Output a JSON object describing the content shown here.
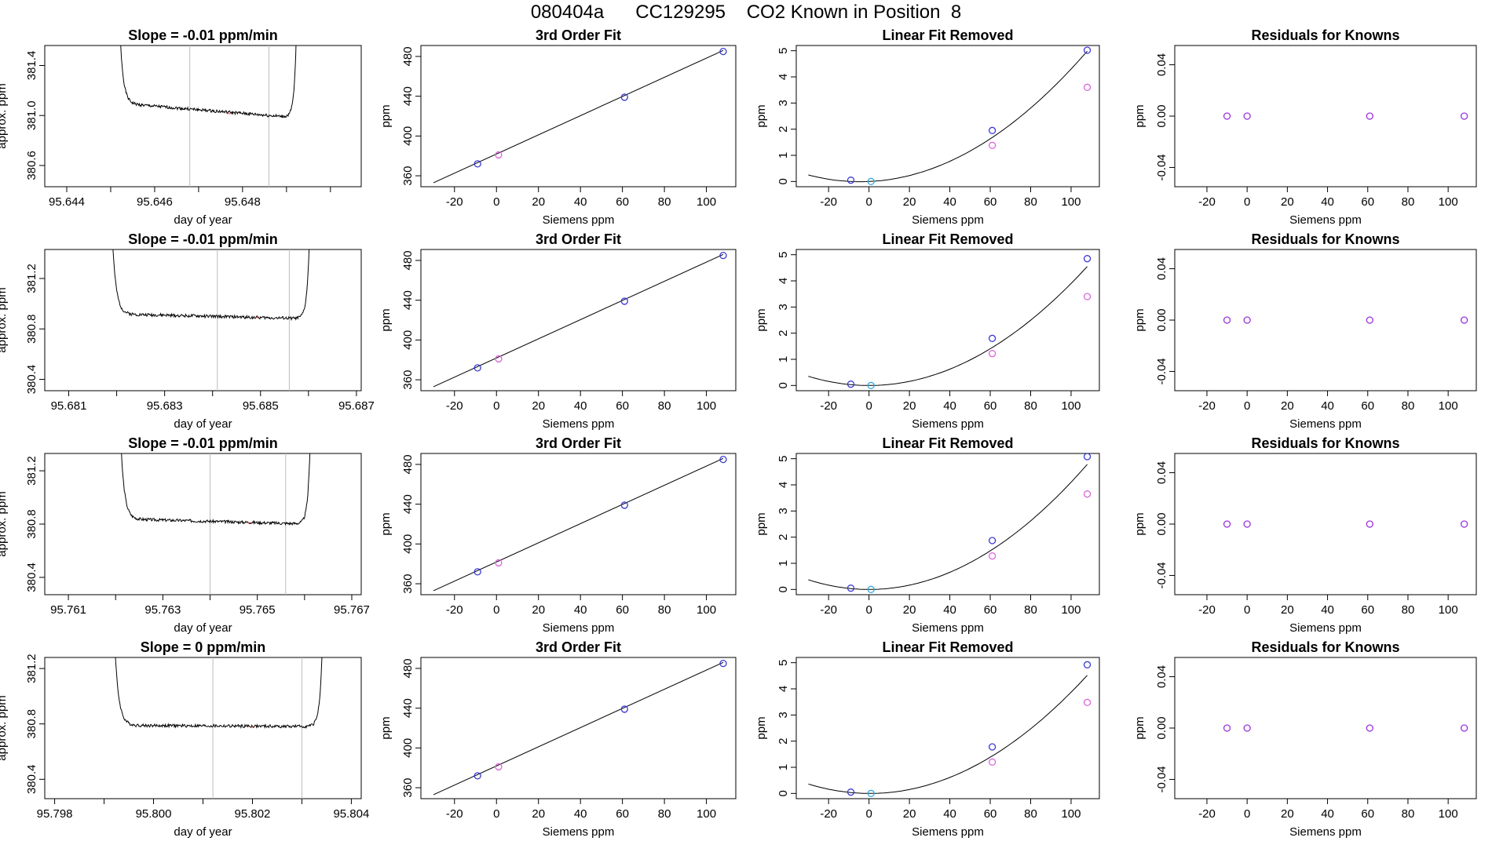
{
  "page": {
    "title": "080404a      CC129295    CO2 Known in Position  8"
  },
  "colors": {
    "axis": "#000000",
    "vline": "#bdbdbd",
    "blue": "#3a3ad4",
    "magenta": "#dd66dd",
    "cyan": "#33aadd",
    "purple": "#9933dd",
    "redmark": "#ee3333"
  },
  "chart_data": [
    {
      "type": "line",
      "row": 0,
      "col": 0,
      "title": "Slope =  -0.01  ppm/min",
      "xlabel": "day of year",
      "ylabel": "approx. ppm",
      "xlim": [
        95.6435,
        95.6507
      ],
      "ylim": [
        380.43,
        381.56
      ],
      "xticks": [
        95.644,
        95.646,
        95.648
      ],
      "xtick_labels": [
        "95.644",
        "95.646",
        "95.648"
      ],
      "xminor": [
        95.645,
        95.647,
        95.649,
        95.65
      ],
      "yticks": [
        380.6,
        381.0,
        381.4
      ],
      "ytick_labels": [
        "380.6",
        "381.0",
        "381.4"
      ],
      "vlines": [
        95.6468,
        95.6486
      ],
      "series": {
        "t0": 95.6451,
        "t1": 95.6493,
        "base": 381.015,
        "start": 381.1,
        "end": 380.98,
        "amp": 0.012,
        "seed": 1
      }
    },
    {
      "type": "line",
      "row": 1,
      "col": 0,
      "title": "Slope =  -0.01  ppm/min",
      "xlabel": "day of year",
      "ylabel": "approx. ppm",
      "xlim": [
        95.6805,
        95.6871
      ],
      "ylim": [
        380.31,
        381.43
      ],
      "xticks": [
        95.681,
        95.683,
        95.685,
        95.687
      ],
      "xtick_labels": [
        "95.681",
        "95.683",
        "95.685",
        "95.687"
      ],
      "xminor": [
        95.682,
        95.684,
        95.686
      ],
      "yticks": [
        380.4,
        380.8,
        381.2
      ],
      "ytick_labels": [
        "380.4",
        "380.8",
        "381.2"
      ],
      "vlines": [
        95.6841,
        95.6856
      ],
      "series": {
        "t0": 95.6818,
        "t1": 95.6861,
        "base": 380.89,
        "start": 380.92,
        "end": 380.88,
        "amp": 0.012,
        "seed": 2
      }
    },
    {
      "type": "line",
      "row": 2,
      "col": 0,
      "title": "Slope =  -0.01  ppm/min",
      "xlabel": "day of year",
      "ylabel": "approx. ppm",
      "xlim": [
        95.7605,
        95.7672
      ],
      "ylim": [
        380.27,
        381.33
      ],
      "xticks": [
        95.761,
        95.763,
        95.765,
        95.767
      ],
      "xtick_labels": [
        "95.761",
        "95.763",
        "95.765",
        "95.767"
      ],
      "xminor": [
        95.762,
        95.764,
        95.766
      ],
      "yticks": [
        380.4,
        380.8,
        381.2
      ],
      "ytick_labels": [
        "380.4",
        "380.8",
        "381.2"
      ],
      "vlines": [
        95.764,
        95.7656
      ],
      "series": {
        "t0": 95.762,
        "t1": 95.7662,
        "base": 380.81,
        "start": 380.84,
        "end": 380.8,
        "amp": 0.011,
        "seed": 3
      }
    },
    {
      "type": "line",
      "row": 3,
      "col": 0,
      "title": "Slope =  0  ppm/min",
      "xlabel": "day of year",
      "ylabel": "approx. ppm",
      "xlim": [
        95.7978,
        95.8042
      ],
      "ylim": [
        380.26,
        381.28
      ],
      "xticks": [
        95.798,
        95.8,
        95.802,
        95.804
      ],
      "xtick_labels": [
        "95.798",
        "95.800",
        "95.802",
        "95.804"
      ],
      "xminor": [
        95.799,
        95.801,
        95.803
      ],
      "yticks": [
        380.4,
        380.8,
        381.2
      ],
      "ytick_labels": [
        "380.4",
        "380.8",
        "381.2"
      ],
      "vlines": [
        95.8012,
        95.803
      ],
      "series": {
        "t0": 95.7991,
        "t1": 95.8035,
        "base": 380.78,
        "start": 380.79,
        "end": 380.78,
        "amp": 0.011,
        "seed": 4
      }
    },
    {
      "type": "line",
      "row": 0,
      "col": 1,
      "title": "3rd Order Fit",
      "xlabel": "Siemens ppm",
      "ylabel": "ppm",
      "xlim": [
        -36,
        114
      ],
      "ylim": [
        349,
        491
      ],
      "xticks": [
        -20,
        0,
        20,
        40,
        60,
        80,
        100
      ],
      "yticks": [
        360,
        400,
        440,
        480
      ],
      "fit": {
        "x0": -30,
        "y0": 353,
        "x1": 108,
        "y1": 486
      },
      "points": [
        {
          "x": -9,
          "y": 372,
          "c": "blue"
        },
        {
          "x": 1,
          "y": 381,
          "c": "magenta"
        },
        {
          "x": 61,
          "y": 439,
          "c": "blue"
        },
        {
          "x": 108,
          "y": 485,
          "c": "blue"
        }
      ]
    },
    {
      "type": "line",
      "row": 1,
      "col": 1,
      "title": "3rd Order Fit",
      "xlabel": "Siemens ppm",
      "ylabel": "ppm",
      "xlim": [
        -36,
        114
      ],
      "ylim": [
        349,
        491
      ],
      "xticks": [
        -20,
        0,
        20,
        40,
        60,
        80,
        100
      ],
      "yticks": [
        360,
        400,
        440,
        480
      ],
      "fit": {
        "x0": -30,
        "y0": 353,
        "x1": 108,
        "y1": 486
      },
      "points": [
        {
          "x": -9,
          "y": 372,
          "c": "blue"
        },
        {
          "x": 1,
          "y": 381,
          "c": "magenta"
        },
        {
          "x": 61,
          "y": 439,
          "c": "blue"
        },
        {
          "x": 108,
          "y": 485,
          "c": "blue"
        }
      ]
    },
    {
      "type": "line",
      "row": 2,
      "col": 1,
      "title": "3rd Order Fit",
      "xlabel": "Siemens ppm",
      "ylabel": "ppm",
      "xlim": [
        -36,
        114
      ],
      "ylim": [
        349,
        491
      ],
      "xticks": [
        -20,
        0,
        20,
        40,
        60,
        80,
        100
      ],
      "yticks": [
        360,
        400,
        440,
        480
      ],
      "fit": {
        "x0": -30,
        "y0": 353,
        "x1": 108,
        "y1": 486
      },
      "points": [
        {
          "x": -9,
          "y": 372,
          "c": "blue"
        },
        {
          "x": 1,
          "y": 381,
          "c": "magenta"
        },
        {
          "x": 61,
          "y": 439,
          "c": "blue"
        },
        {
          "x": 108,
          "y": 485,
          "c": "blue"
        }
      ]
    },
    {
      "type": "line",
      "row": 3,
      "col": 1,
      "title": "3rd Order Fit",
      "xlabel": "Siemens ppm",
      "ylabel": "ppm",
      "xlim": [
        -36,
        114
      ],
      "ylim": [
        349,
        491
      ],
      "xticks": [
        -20,
        0,
        20,
        40,
        60,
        80,
        100
      ],
      "yticks": [
        360,
        400,
        440,
        480
      ],
      "fit": {
        "x0": -30,
        "y0": 353,
        "x1": 108,
        "y1": 486
      },
      "points": [
        {
          "x": -9,
          "y": 372,
          "c": "blue"
        },
        {
          "x": 1,
          "y": 381,
          "c": "magenta"
        },
        {
          "x": 61,
          "y": 439,
          "c": "blue"
        },
        {
          "x": 108,
          "y": 485,
          "c": "blue"
        }
      ]
    },
    {
      "type": "line",
      "row": 0,
      "col": 2,
      "title": "Linear Fit Removed",
      "xlabel": "Siemens ppm",
      "ylabel": "ppm",
      "xlim": [
        -36,
        114
      ],
      "ylim": [
        -0.2,
        5.2
      ],
      "xticks": [
        -20,
        0,
        20,
        40,
        60,
        80,
        100
      ],
      "yticks": [
        0,
        1,
        2,
        3,
        4,
        5
      ],
      "curve": {
        "a": 0.000395,
        "b": 0.0035,
        "xmin": -30,
        "xmax": 108
      },
      "points": [
        {
          "x": -9,
          "y": 0.05,
          "c": "blue"
        },
        {
          "x": 1,
          "y": 0.0,
          "c": "cyan"
        },
        {
          "x": 61,
          "y": 1.95,
          "c": "blue"
        },
        {
          "x": 108,
          "y": 5.02,
          "c": "blue"
        },
        {
          "x": 61,
          "y": 1.38,
          "c": "magenta"
        },
        {
          "x": 108,
          "y": 3.6,
          "c": "magenta"
        }
      ]
    },
    {
      "type": "line",
      "row": 1,
      "col": 2,
      "title": "Linear Fit Removed",
      "xlabel": "Siemens ppm",
      "ylabel": "ppm",
      "xlim": [
        -36,
        114
      ],
      "ylim": [
        -0.2,
        5.2
      ],
      "xticks": [
        -20,
        0,
        20,
        40,
        60,
        80,
        100
      ],
      "yticks": [
        0,
        1,
        2,
        3,
        4,
        5
      ],
      "curve": {
        "a": 0.00039,
        "b": 0.0,
        "xmin": -30,
        "xmax": 108
      },
      "points": [
        {
          "x": -9,
          "y": 0.05,
          "c": "blue"
        },
        {
          "x": 1,
          "y": 0.0,
          "c": "cyan"
        },
        {
          "x": 61,
          "y": 1.8,
          "c": "blue"
        },
        {
          "x": 108,
          "y": 4.85,
          "c": "blue"
        },
        {
          "x": 61,
          "y": 1.22,
          "c": "magenta"
        },
        {
          "x": 108,
          "y": 3.4,
          "c": "magenta"
        }
      ]
    },
    {
      "type": "line",
      "row": 2,
      "col": 2,
      "title": "Linear Fit Removed",
      "xlabel": "Siemens ppm",
      "ylabel": "ppm",
      "xlim": [
        -36,
        114
      ],
      "ylim": [
        -0.2,
        5.2
      ],
      "xticks": [
        -20,
        0,
        20,
        40,
        60,
        80,
        100
      ],
      "yticks": [
        0,
        1,
        2,
        3,
        4,
        5
      ],
      "curve": {
        "a": 0.00041,
        "b": 0.0,
        "xmin": -30,
        "xmax": 108
      },
      "points": [
        {
          "x": -9,
          "y": 0.05,
          "c": "blue"
        },
        {
          "x": 1,
          "y": 0.0,
          "c": "cyan"
        },
        {
          "x": 61,
          "y": 1.87,
          "c": "blue"
        },
        {
          "x": 108,
          "y": 5.08,
          "c": "blue"
        },
        {
          "x": 61,
          "y": 1.28,
          "c": "magenta"
        },
        {
          "x": 108,
          "y": 3.65,
          "c": "magenta"
        }
      ]
    },
    {
      "type": "line",
      "row": 3,
      "col": 2,
      "title": "Linear Fit Removed",
      "xlabel": "Siemens ppm",
      "ylabel": "ppm",
      "xlim": [
        -36,
        114
      ],
      "ylim": [
        -0.2,
        5.2
      ],
      "xticks": [
        -20,
        0,
        20,
        40,
        60,
        80,
        100
      ],
      "yticks": [
        0,
        1,
        2,
        3,
        4,
        5
      ],
      "curve": {
        "a": 0.00039,
        "b": -0.0003,
        "xmin": -30,
        "xmax": 108
      },
      "points": [
        {
          "x": -9,
          "y": 0.05,
          "c": "blue"
        },
        {
          "x": 1,
          "y": 0.0,
          "c": "cyan"
        },
        {
          "x": 61,
          "y": 1.78,
          "c": "blue"
        },
        {
          "x": 108,
          "y": 4.92,
          "c": "blue"
        },
        {
          "x": 61,
          "y": 1.2,
          "c": "magenta"
        },
        {
          "x": 108,
          "y": 3.48,
          "c": "magenta"
        }
      ]
    },
    {
      "type": "scatter",
      "row": 0,
      "col": 3,
      "title": "Residuals for Knowns",
      "xlabel": "Siemens ppm",
      "ylabel": "ppm",
      "xlim": [
        -36,
        114
      ],
      "ylim": [
        -0.055,
        0.055
      ],
      "xticks": [
        -20,
        0,
        20,
        40,
        60,
        80,
        100
      ],
      "yticks": [
        -0.04,
        0.0,
        0.04
      ],
      "ytick_labels": [
        "-0.04",
        "0.00",
        "0.04"
      ],
      "points": [
        {
          "x": -10,
          "y": 0,
          "c": "purple"
        },
        {
          "x": 0,
          "y": 0,
          "c": "purple"
        },
        {
          "x": 61,
          "y": 0,
          "c": "purple"
        },
        {
          "x": 108,
          "y": 0,
          "c": "purple"
        }
      ]
    },
    {
      "type": "scatter",
      "row": 1,
      "col": 3,
      "title": "Residuals for Knowns",
      "xlabel": "Siemens ppm",
      "ylabel": "ppm",
      "xlim": [
        -36,
        114
      ],
      "ylim": [
        -0.055,
        0.055
      ],
      "xticks": [
        -20,
        0,
        20,
        40,
        60,
        80,
        100
      ],
      "yticks": [
        -0.04,
        0.0,
        0.04
      ],
      "ytick_labels": [
        "-0.04",
        "0.00",
        "0.04"
      ],
      "points": [
        {
          "x": -10,
          "y": 0,
          "c": "purple"
        },
        {
          "x": 0,
          "y": 0,
          "c": "purple"
        },
        {
          "x": 61,
          "y": 0,
          "c": "purple"
        },
        {
          "x": 108,
          "y": 0,
          "c": "purple"
        }
      ]
    },
    {
      "type": "scatter",
      "row": 2,
      "col": 3,
      "title": "Residuals for Knowns",
      "xlabel": "Siemens ppm",
      "ylabel": "ppm",
      "xlim": [
        -36,
        114
      ],
      "ylim": [
        -0.055,
        0.055
      ],
      "xticks": [
        -20,
        0,
        20,
        40,
        60,
        80,
        100
      ],
      "yticks": [
        -0.04,
        0.0,
        0.04
      ],
      "ytick_labels": [
        "-0.04",
        "0.00",
        "0.04"
      ],
      "points": [
        {
          "x": -10,
          "y": 0,
          "c": "purple"
        },
        {
          "x": 0,
          "y": 0,
          "c": "purple"
        },
        {
          "x": 61,
          "y": 0,
          "c": "purple"
        },
        {
          "x": 108,
          "y": 0,
          "c": "purple"
        }
      ]
    },
    {
      "type": "scatter",
      "row": 3,
      "col": 3,
      "title": "Residuals for Knowns",
      "xlabel": "Siemens ppm",
      "ylabel": "ppm",
      "xlim": [
        -36,
        114
      ],
      "ylim": [
        -0.055,
        0.055
      ],
      "xticks": [
        -20,
        0,
        20,
        40,
        60,
        80,
        100
      ],
      "yticks": [
        -0.04,
        0.0,
        0.04
      ],
      "ytick_labels": [
        "-0.04",
        "0.00",
        "0.04"
      ],
      "points": [
        {
          "x": -10,
          "y": 0,
          "c": "purple"
        },
        {
          "x": 0,
          "y": 0,
          "c": "purple"
        },
        {
          "x": 61,
          "y": 0,
          "c": "purple"
        },
        {
          "x": 108,
          "y": 0,
          "c": "purple"
        }
      ]
    }
  ]
}
